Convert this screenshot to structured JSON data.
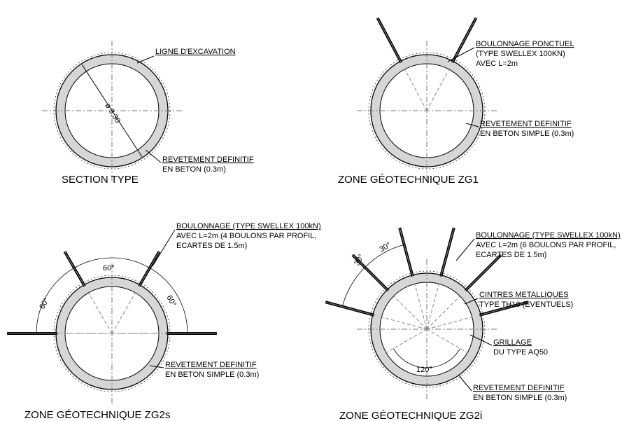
{
  "panels": [
    {
      "title": "SECTION TYPE",
      "dimension": "ø 3.30",
      "labels": [
        [
          "LIGNE D'EXCAVATION"
        ],
        [
          "REVETEMENT DEFINITIF",
          "EN BETON (0.3m)"
        ]
      ]
    },
    {
      "title": "ZONE GÉOTECHNIQUE ZG1",
      "labels": [
        [
          "BOULONNAGE PONCTUEL",
          "(TYPE SWELLEX 100KN)",
          "AVEC L=2m"
        ],
        [
          "REVETEMENT DEFINITIF",
          "EN BETON SIMPLE (0.3m)"
        ]
      ]
    },
    {
      "title": "ZONE GÉOTECHNIQUE ZG2s",
      "angles": [
        "60°",
        "60°",
        "60°"
      ],
      "labels": [
        [
          "BOULONNAGE (TYPE SWELLEX 100kN)",
          "AVEC L=2m (4 BOULONS PAR PROFIL,",
          "ECARTES DE 1.5m)"
        ],
        [
          "REVETEMENT DEFINITIF",
          "EN BETON SIMPLE (0.3m)"
        ]
      ]
    },
    {
      "title": "ZONE GÉOTECHNIQUE ZG2i",
      "angles": [
        "30°",
        "30°",
        "120°"
      ],
      "labels": [
        [
          "BOULONNAGE (TYPE SWELLEX 100kN)",
          "AVEC L=2m (6 BOULONS PAR PROFIL,",
          "ECARTES DE 1.5m)"
        ],
        [
          "CINTRES METALLIQUES",
          "TYPE TH16  (EVENTUELS)"
        ],
        [
          "GRILLAGE",
          "DU TYPE AQ50"
        ],
        [
          "REVETEMENT DEFINITIF",
          "EN BETON SIMPLE (0.3m)"
        ]
      ]
    }
  ]
}
